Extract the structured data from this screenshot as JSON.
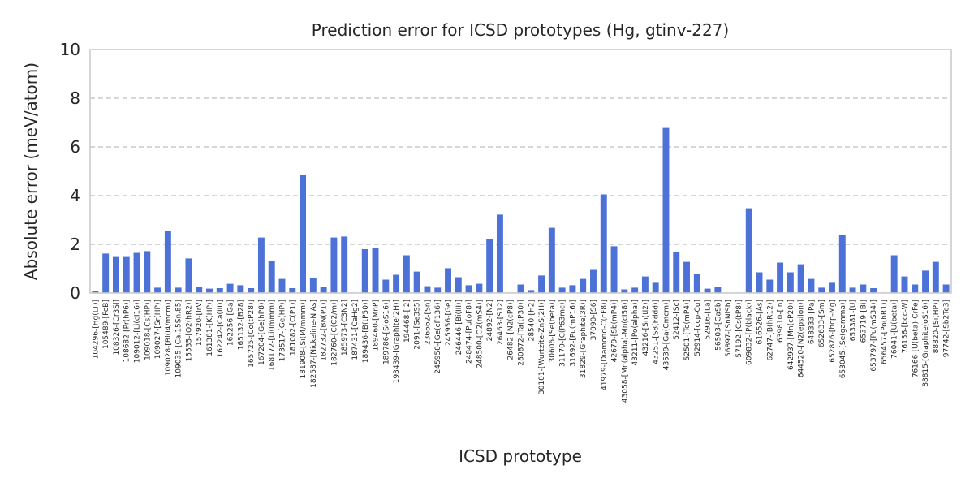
{
  "chart_data": {
    "type": "bar",
    "title": "Prediction error for ICSD prototypes (Hg, gtinv-227)",
    "xlabel": "ICSD prototype",
    "ylabel": "Absolute error (meV/atom)",
    "ylim": [
      0,
      10
    ],
    "yticks": [
      0,
      2,
      4,
      6,
      8,
      10
    ],
    "grid": true,
    "bar_color": "#4c72d8",
    "categories": [
      "104296-[Hg(LT)]",
      "105489-[FeB]",
      "108326-[Cr3Si]",
      "108682-[Pr(hP6)]",
      "109012-[Li(cI16)]",
      "109018-[Cs(HP)]",
      "109027-[Sr(HP)]",
      "109028-[Bi(I4/mcm)]",
      "109035-[Ca.15Sn.85]",
      "15535-[O2(hR2)]",
      "157920-[IrV]",
      "161381-[K(HP)]",
      "162242-[Ca(III)]",
      "162256-[Ga]",
      "165132-[B28]",
      "165725-[Co(tP28)]",
      "167204-[Ge(hP8)]",
      "168172-[Li(Immm)]",
      "173517-[Ge(HP)]",
      "181082-[C(P1)]",
      "181908-[Si(I4/mmm)]",
      "182587-[Nickeline-NiAs]",
      "182732-[BN(P1)]",
      "182760-[C(C2/m)]",
      "185973-[C3N2]",
      "187431-[CaHg2]",
      "189436-[B(tP50)]",
      "189460-[MnP]",
      "189786-[S(oS16)]",
      "193439-[Graphite(2H)]",
      "194468-[I2]",
      "2091-[Se3S5]",
      "236662-[Sn]",
      "245950-[Ge(cF136)]",
      "245956-[Ge]",
      "246446-[Bi(III)]",
      "248474-[Pu(oF8)]",
      "248500-[O2(mS4)]",
      "24892-[N2]",
      "26463-[S12]",
      "26482-[N2(cP8)]",
      "280872-[Ta(tP30)]",
      "28540-[H2]",
      "30101-[Wurtzite-ZnS(2H)]",
      "30606-[Se(beta)]",
      "31170-[C(P63mc)]",
      "31692-[Pu(mP16)]",
      "31829-[Graphite(3R)]",
      "37090-[S6]",
      "41979-[Diamond-C(cF8)]",
      "42679-[Sb(mP4)]",
      "43058-[Mn(alpha)-Mn(cI58)]",
      "43211-[Po(alpha)]",
      "43216-[Sn(tI2)]",
      "43251-[S8(Fddd)]",
      "43539-[Ga(Cmcm)]",
      "52412-[Sc]",
      "52501-[Te(mP4)]",
      "52914-[ccp-Cu]",
      "52916-[La]",
      "56503-[GaSb]",
      "56897-[SnNiSb]",
      "57192-[Cs(tP8)]",
      "609832-[P(black)]",
      "616526-[As]",
      "62747-[B(hR12)]",
      "639810-[In]",
      "642937-[Mn(cP20)]",
      "644520-[N2(epsilon)]",
      "648333-[Pa]",
      "652633-[Sm]",
      "652876-[hcp-Mg]",
      "653045-[Se(gamma)]",
      "653381-[U]",
      "653719-[Bi]",
      "653797-[Pu(mS34)]",
      "656457-[Po(hR1)]",
      "76041-[U(beta)]",
      "76156-[bcc-W]",
      "76166-[U(beta)-CrFe]",
      "88815-[Graphite(oS16)]",
      "88820-[Si(HP)]",
      "97742-[Sb2Te3]"
    ],
    "values": [
      0.08,
      1.62,
      1.48,
      1.48,
      1.65,
      1.72,
      0.22,
      2.55,
      0.22,
      1.42,
      0.25,
      0.18,
      0.2,
      0.38,
      0.32,
      0.2,
      2.28,
      1.32,
      0.58,
      0.2,
      4.85,
      0.62,
      0.25,
      2.28,
      2.32,
      0.02,
      1.8,
      1.85,
      0.55,
      0.75,
      1.55,
      0.88,
      0.28,
      0.22,
      1.02,
      0.65,
      0.32,
      0.38,
      2.22,
      3.22,
      0.02,
      0.35,
      0.12,
      0.72,
      2.68,
      0.22,
      0.32,
      0.58,
      0.95,
      4.05,
      1.92,
      0.15,
      0.22,
      0.68,
      0.42,
      6.78,
      1.68,
      1.28,
      0.78,
      0.18,
      0.25,
      0.02,
      0.02,
      3.48,
      0.85,
      0.55,
      1.25,
      0.85,
      1.18,
      0.58,
      0.22,
      0.42,
      2.38,
      0.22,
      0.35,
      0.2,
      0.02,
      1.55,
      0.68,
      0.35,
      0.92,
      1.28,
      0.35
    ]
  }
}
